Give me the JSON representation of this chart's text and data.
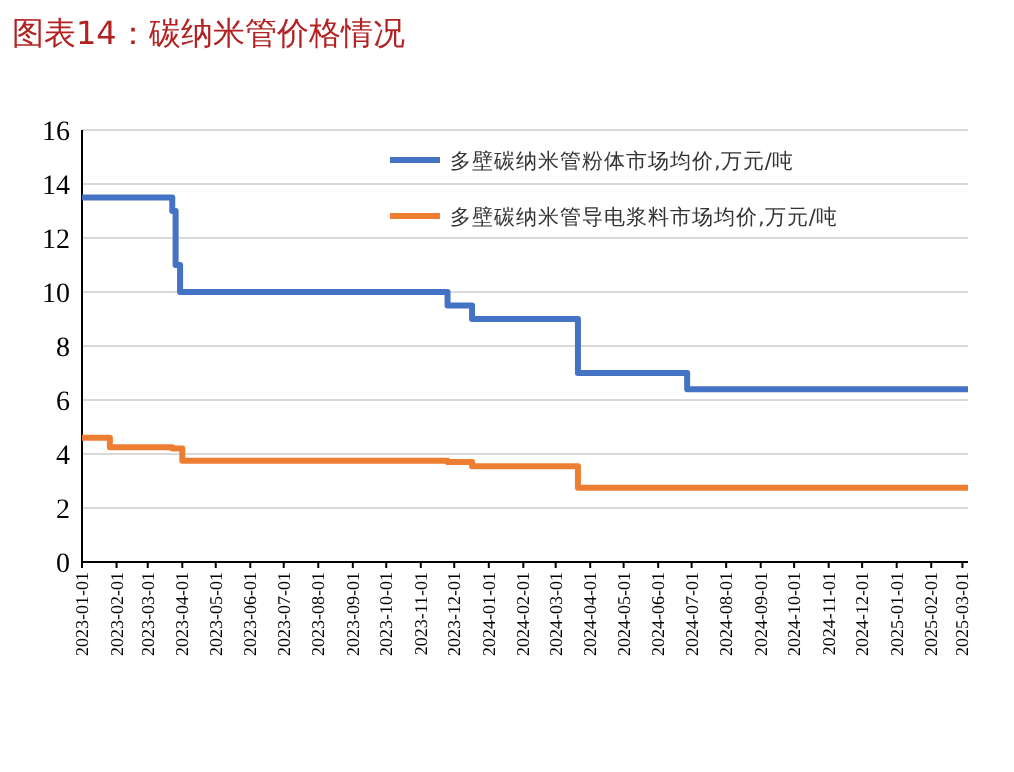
{
  "chart_data": {
    "type": "step",
    "title": "图表14：碳纳米管价格情况",
    "xlim": [
      "2023-01-01",
      "2025-03-06"
    ],
    "ylim": [
      0,
      16
    ],
    "yticks": [
      0,
      2,
      4,
      6,
      8,
      10,
      12,
      14,
      16
    ],
    "xticks": [
      "2023-01-01",
      "2023-02-01",
      "2023-03-01",
      "2023-04-01",
      "2023-05-01",
      "2023-06-01",
      "2023-07-01",
      "2023-08-01",
      "2023-09-01",
      "2023-10-01",
      "2023-11-01",
      "2023-12-01",
      "2024-01-01",
      "2024-02-01",
      "2024-03-01",
      "2024-04-01",
      "2024-05-01",
      "2024-06-01",
      "2024-07-01",
      "2024-08-01",
      "2024-09-01",
      "2024-10-01",
      "2024-11-01",
      "2024-12-01",
      "2025-01-01",
      "2025-02-01",
      "2025-03-01"
    ],
    "grid": "y",
    "legend": "top right",
    "line_style": "solid",
    "marker": "none",
    "series": [
      {
        "name": "多壁碳纳米管粉体市场均价,万元/吨",
        "color": "#4472c4",
        "x": [
          "2023-01-01",
          "2023-03-23",
          "2023-03-26",
          "2023-03-30",
          "2023-11-25",
          "2023-12-17",
          "2024-03-21",
          "2024-06-27",
          "2025-03-06"
        ],
        "values": [
          13.5,
          13,
          11,
          10,
          9.5,
          9,
          7,
          6.4,
          6.4
        ]
      },
      {
        "name": "多壁碳纳米管导电浆料市场均价,万元/吨",
        "color": "#ed7d31",
        "x": [
          "2023-01-01",
          "2023-01-26",
          "2023-03-23",
          "2023-04-01",
          "2023-11-25",
          "2023-12-17",
          "2024-03-21",
          "2025-03-06"
        ],
        "values": [
          4.6,
          4.25,
          4.2,
          3.75,
          3.7,
          3.55,
          2.75,
          2.75
        ]
      }
    ]
  }
}
